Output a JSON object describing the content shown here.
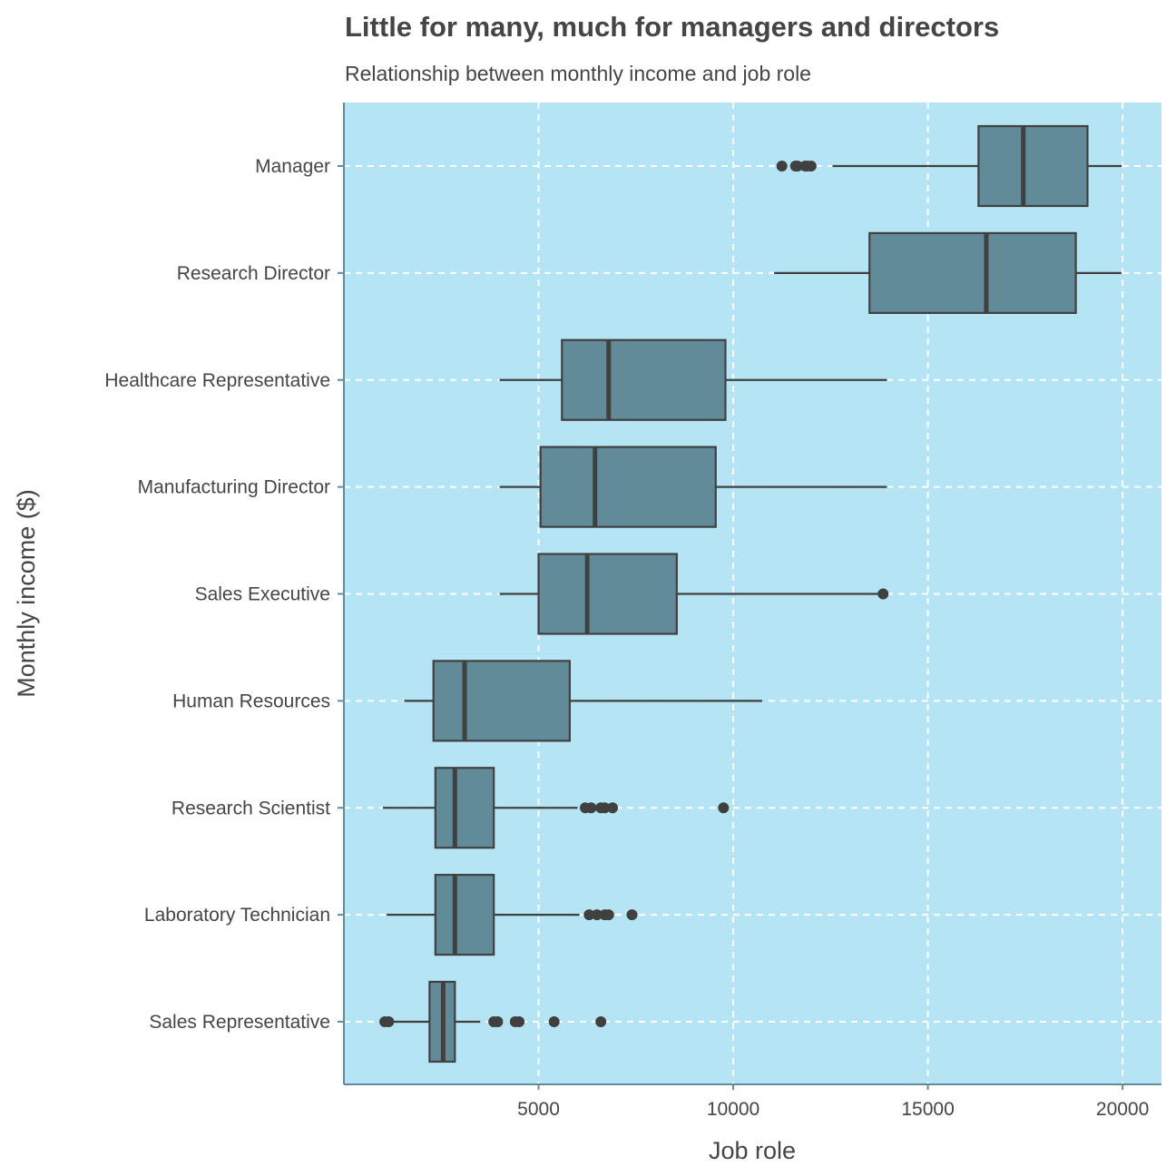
{
  "chart_data": {
    "type": "boxplot",
    "orientation": "horizontal",
    "title": "Little for many, much for managers and directors",
    "subtitle": "Relationship between monthly income and job role",
    "xlabel": "Job role",
    "ylabel": "Monthly income ($)",
    "xlim": [
      0,
      21000
    ],
    "x_ticks": [
      5000,
      10000,
      15000,
      20000
    ],
    "grid": "dashed, white",
    "colors": {
      "panel": "#b5e5f5",
      "box_fill": "#628b99",
      "stroke": "#404040",
      "grid": "#ffffff",
      "axis_line": "#628b99"
    },
    "categories": [
      "Manager",
      "Research Director",
      "Healthcare Representative",
      "Manufacturing Director",
      "Sales Executive",
      "Human Resources",
      "Research Scientist",
      "Laboratory Technician",
      "Sales Representative"
    ],
    "boxes": [
      {
        "category": "Manager",
        "whisker_low": 12550,
        "q1": 16300,
        "median": 17450,
        "q3": 19100,
        "whisker_high": 19980,
        "outliers": [
          11250,
          11600,
          11650,
          11850,
          11900,
          12000
        ]
      },
      {
        "category": "Research Director",
        "whisker_low": 11050,
        "q1": 13500,
        "median": 16500,
        "q3": 18800,
        "whisker_high": 19970,
        "outliers": []
      },
      {
        "category": "Healthcare Representative",
        "whisker_low": 4000,
        "q1": 5600,
        "median": 6800,
        "q3": 9800,
        "whisker_high": 13950,
        "outliers": []
      },
      {
        "category": "Manufacturing Director",
        "whisker_low": 4000,
        "q1": 5050,
        "median": 6450,
        "q3": 9550,
        "whisker_high": 13950,
        "outliers": []
      },
      {
        "category": "Sales Executive",
        "whisker_low": 4000,
        "q1": 5000,
        "median": 6250,
        "q3": 8550,
        "whisker_high": 13850,
        "outliers": [
          13850
        ]
      },
      {
        "category": "Human Resources",
        "whisker_low": 1550,
        "q1": 2300,
        "median": 3100,
        "q3": 5800,
        "whisker_high": 10750,
        "outliers": []
      },
      {
        "category": "Research Scientist",
        "whisker_low": 1000,
        "q1": 2350,
        "median": 2850,
        "q3": 3850,
        "whisker_high": 6000,
        "outliers": [
          6200,
          6350,
          6600,
          6700,
          6900,
          9750
        ]
      },
      {
        "category": "Laboratory Technician",
        "whisker_low": 1100,
        "q1": 2350,
        "median": 2850,
        "q3": 3850,
        "whisker_high": 6050,
        "outliers": [
          6300,
          6500,
          6700,
          6800,
          7400
        ]
      },
      {
        "category": "Sales Representative",
        "whisker_low": 1250,
        "q1": 2200,
        "median": 2550,
        "q3": 2850,
        "whisker_high": 3500,
        "outliers": [
          1050,
          1150,
          3850,
          3950,
          4400,
          4500,
          5400,
          6600
        ]
      }
    ]
  }
}
